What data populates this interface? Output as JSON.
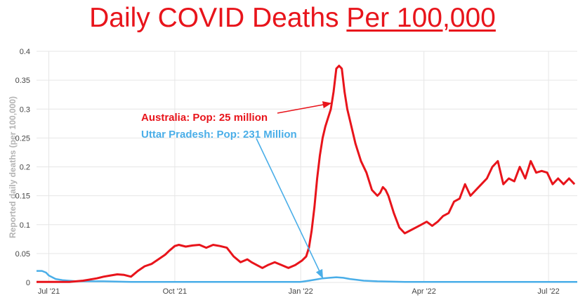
{
  "title": {
    "main": "Daily COVID Deaths",
    "underlined": "Per 100,000"
  },
  "colors": {
    "australia": "#e8141b",
    "uttar_pradesh": "#4aaee8",
    "grid": "#e6e6e6"
  },
  "chart_data": {
    "type": "line",
    "title": "Daily COVID Deaths Per 100,000",
    "xlabel": "",
    "ylabel": "Reported daily deaths (per 100,000)",
    "ylim": [
      0,
      0.4
    ],
    "yticks": [
      0,
      0.05,
      0.1,
      0.15,
      0.2,
      0.25,
      0.3,
      0.35,
      0.4
    ],
    "ytick_labels": [
      "0",
      "0.05",
      "0.1",
      "0.15",
      "0.2",
      "0.25",
      "0.3",
      "0.35",
      "0.4"
    ],
    "x_unit": "days since 2021-07-01",
    "xlim": [
      -9,
      386
    ],
    "xticks": [
      0,
      92,
      184,
      274,
      365
    ],
    "xtick_labels": [
      "Jul '21",
      "Oct '21",
      "Jan '22",
      "Apr '22",
      "Jul '22"
    ],
    "grid": true,
    "series": [
      {
        "name": "Australia",
        "x": [
          -9,
          0,
          15,
          25,
          35,
          40,
          45,
          50,
          55,
          60,
          65,
          70,
          75,
          80,
          85,
          88,
          92,
          95,
          100,
          105,
          110,
          115,
          120,
          125,
          130,
          135,
          140,
          145,
          148,
          152,
          156,
          160,
          165,
          170,
          175,
          180,
          185,
          188,
          190,
          192,
          194,
          196,
          198,
          200,
          202,
          204,
          206,
          208,
          210,
          212,
          214,
          216,
          218,
          220,
          224,
          228,
          232,
          236,
          240,
          242,
          244,
          246,
          248,
          252,
          256,
          260,
          264,
          268,
          272,
          276,
          280,
          284,
          288,
          292,
          296,
          300,
          304,
          308,
          312,
          316,
          320,
          324,
          328,
          332,
          336,
          340,
          344,
          348,
          352,
          356,
          360,
          364,
          368,
          372,
          376,
          380,
          384
        ],
        "values": [
          0.001,
          0.001,
          0.001,
          0.003,
          0.007,
          0.01,
          0.012,
          0.014,
          0.013,
          0.01,
          0.02,
          0.028,
          0.032,
          0.04,
          0.048,
          0.055,
          0.063,
          0.065,
          0.062,
          0.064,
          0.065,
          0.06,
          0.065,
          0.063,
          0.06,
          0.045,
          0.035,
          0.04,
          0.035,
          0.03,
          0.025,
          0.03,
          0.035,
          0.03,
          0.025,
          0.03,
          0.038,
          0.045,
          0.06,
          0.09,
          0.13,
          0.18,
          0.22,
          0.25,
          0.27,
          0.285,
          0.3,
          0.33,
          0.37,
          0.375,
          0.37,
          0.33,
          0.3,
          0.28,
          0.24,
          0.21,
          0.19,
          0.16,
          0.15,
          0.155,
          0.165,
          0.16,
          0.15,
          0.12,
          0.095,
          0.085,
          0.09,
          0.095,
          0.1,
          0.105,
          0.098,
          0.105,
          0.115,
          0.12,
          0.14,
          0.145,
          0.17,
          0.15,
          0.16,
          0.17,
          0.18,
          0.2,
          0.21,
          0.17,
          0.18,
          0.175,
          0.2,
          0.18,
          0.21,
          0.19,
          0.193,
          0.19,
          0.17,
          0.18,
          0.17,
          0.18,
          0.17
        ]
      },
      {
        "name": "Uttar Pradesh",
        "x": [
          -9,
          -5,
          -2,
          0,
          5,
          10,
          20,
          40,
          60,
          80,
          100,
          120,
          150,
          175,
          184,
          190,
          195,
          200,
          205,
          210,
          215,
          220,
          230,
          240,
          260,
          280,
          300,
          320,
          340,
          360,
          386
        ],
        "values": [
          0.02,
          0.02,
          0.017,
          0.012,
          0.006,
          0.004,
          0.002,
          0.002,
          0.001,
          0.001,
          0.001,
          0.001,
          0.001,
          0.001,
          0.001,
          0.003,
          0.005,
          0.007,
          0.008,
          0.009,
          0.008,
          0.006,
          0.003,
          0.002,
          0.001,
          0.001,
          0.001,
          0.001,
          0.001,
          0.001,
          0.001
        ]
      }
    ],
    "annotations": [
      {
        "text": "Australia: Pop: 25 million",
        "series": "Australia",
        "target": [
          206,
          0.31
        ]
      },
      {
        "text": "Uttar Pradesh: Pop: 231 Million",
        "series": "Uttar Pradesh",
        "target": [
          200,
          0.008
        ]
      }
    ]
  }
}
